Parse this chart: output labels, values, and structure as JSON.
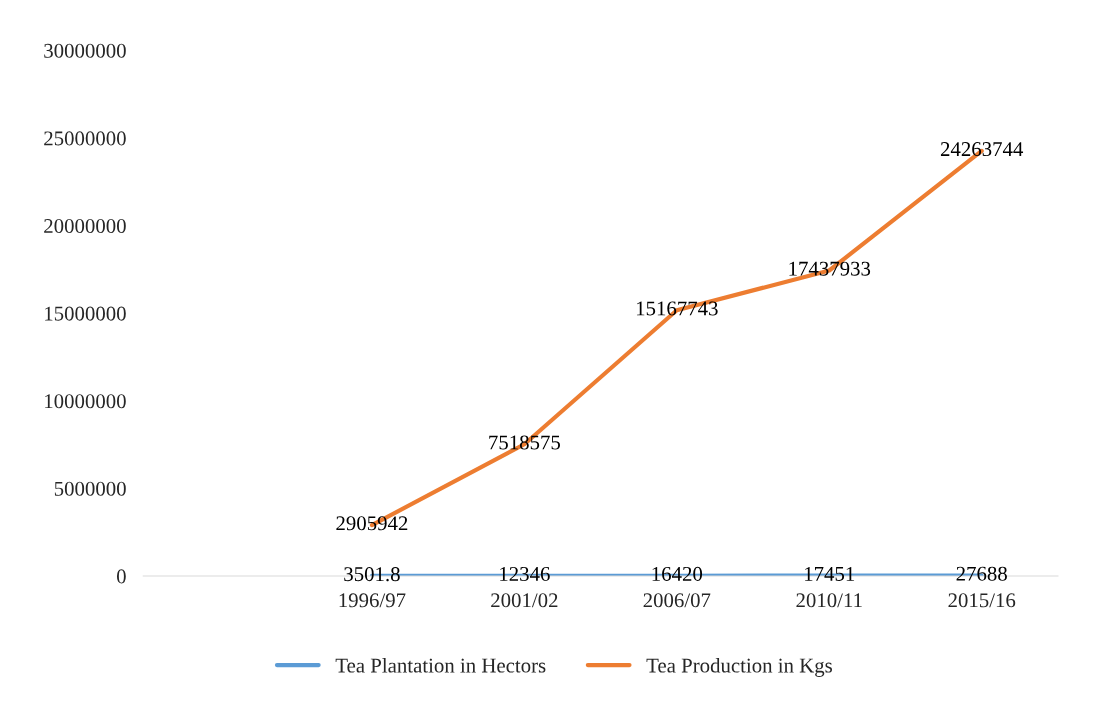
{
  "chart_data": {
    "type": "line",
    "categories": [
      null,
      "1996/97",
      "2001/02",
      "2006/07",
      "2010/11",
      "2015/16"
    ],
    "series": [
      {
        "name": "Tea Plantation in Hectors",
        "color": "#5b9bd5",
        "values": [
          null,
          3501.8,
          12346,
          16420,
          17451,
          27688
        ]
      },
      {
        "name": "Tea Production in Kgs",
        "color": "#ed7d31",
        "values": [
          null,
          2905942,
          7518575,
          15167743,
          17437933,
          24263744
        ]
      }
    ],
    "ylim": [
      0,
      30000000
    ],
    "yticks": [
      0,
      5000000,
      10000000,
      15000000,
      20000000,
      25000000,
      30000000
    ],
    "data_labels": true,
    "grid": false,
    "legend": "bottom",
    "marker": "none",
    "line_style": "solid"
  }
}
